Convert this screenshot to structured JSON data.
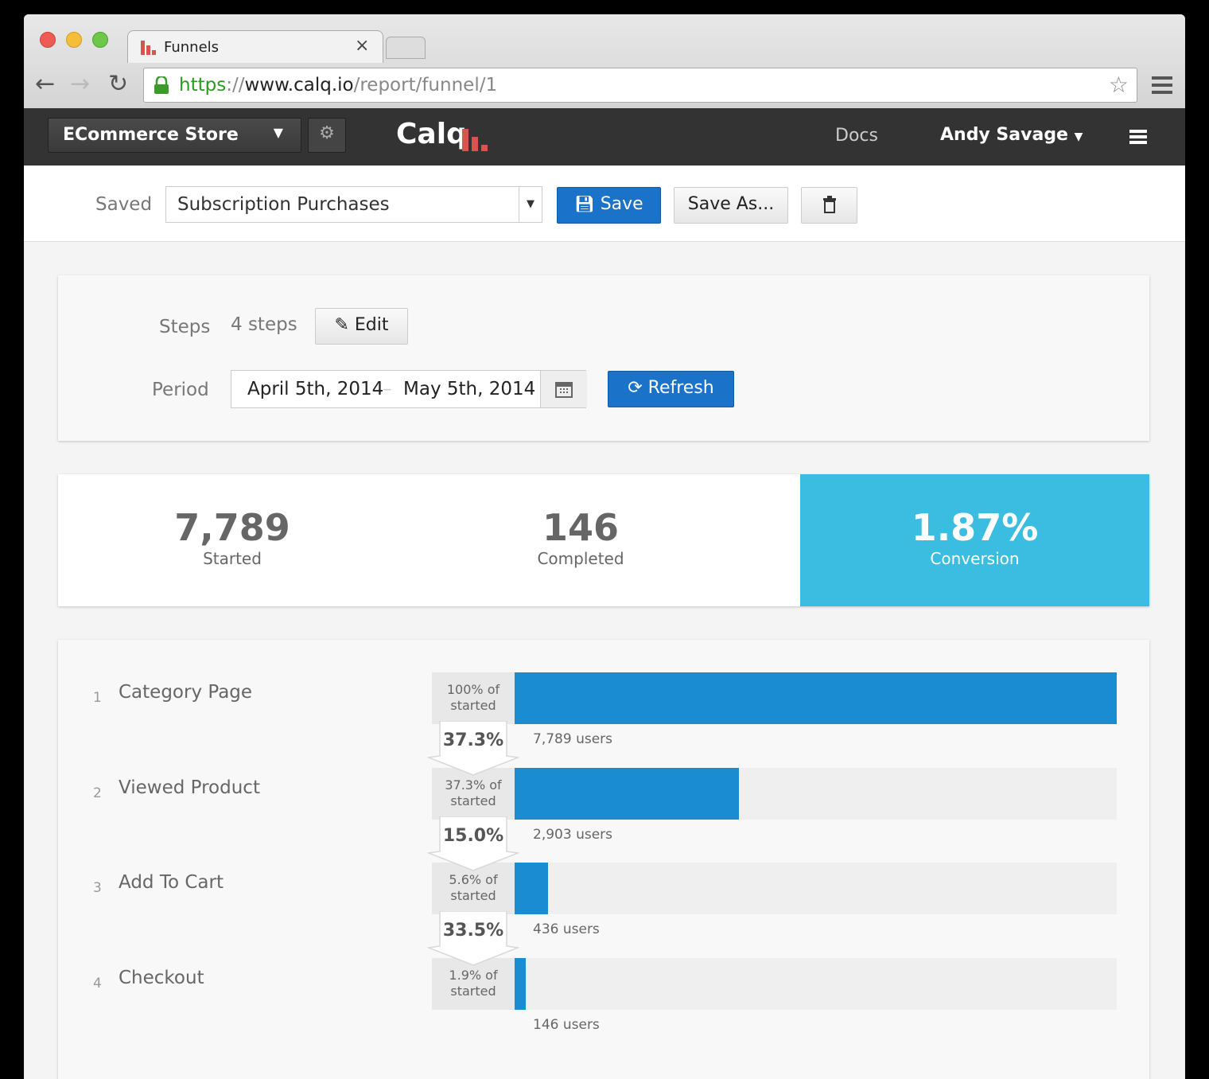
{
  "browser": {
    "tab_title": "Funnels",
    "url": {
      "scheme": "https",
      "separator": "://",
      "host": "www.calq.io",
      "path": "/report/funnel/1"
    }
  },
  "navbar": {
    "project": "ECommerce Store",
    "logo": "Calq",
    "docs": "Docs",
    "user": "Andy Savage"
  },
  "toolbar": {
    "saved_label": "Saved",
    "saved_report": "Subscription Purchases",
    "save": "Save",
    "save_as": "Save As..."
  },
  "filters": {
    "steps_label": "Steps",
    "steps_value": "4 steps",
    "edit": "Edit",
    "period_label": "Period",
    "start_date": "April 5th, 2014",
    "end_date": "May 5th, 2014",
    "refresh": "Refresh"
  },
  "summary": {
    "started_value": "7,789",
    "started_label": "Started",
    "completed_value": "146",
    "completed_label": "Completed",
    "conversion_value": "1.87%",
    "conversion_label": "Conversion"
  },
  "chart_data": {
    "type": "bar",
    "orientation": "horizontal",
    "step_numbers": [
      1,
      2,
      3,
      4
    ],
    "categories": [
      "Category Page",
      "Viewed Product",
      "Add To Cart",
      "Checkout"
    ],
    "values": [
      100,
      37.3,
      5.6,
      1.9
    ],
    "value_labels": [
      "100% of started",
      "37.3% of started",
      "5.6% of started",
      "1.9% of started"
    ],
    "user_labels": [
      "7,789 users",
      "2,903 users",
      "436 users",
      "146 users"
    ],
    "step_conversions": [
      "37.3%",
      "15.0%",
      "33.5%"
    ],
    "xlim": [
      0,
      100
    ],
    "color": "#1a8dd2"
  }
}
